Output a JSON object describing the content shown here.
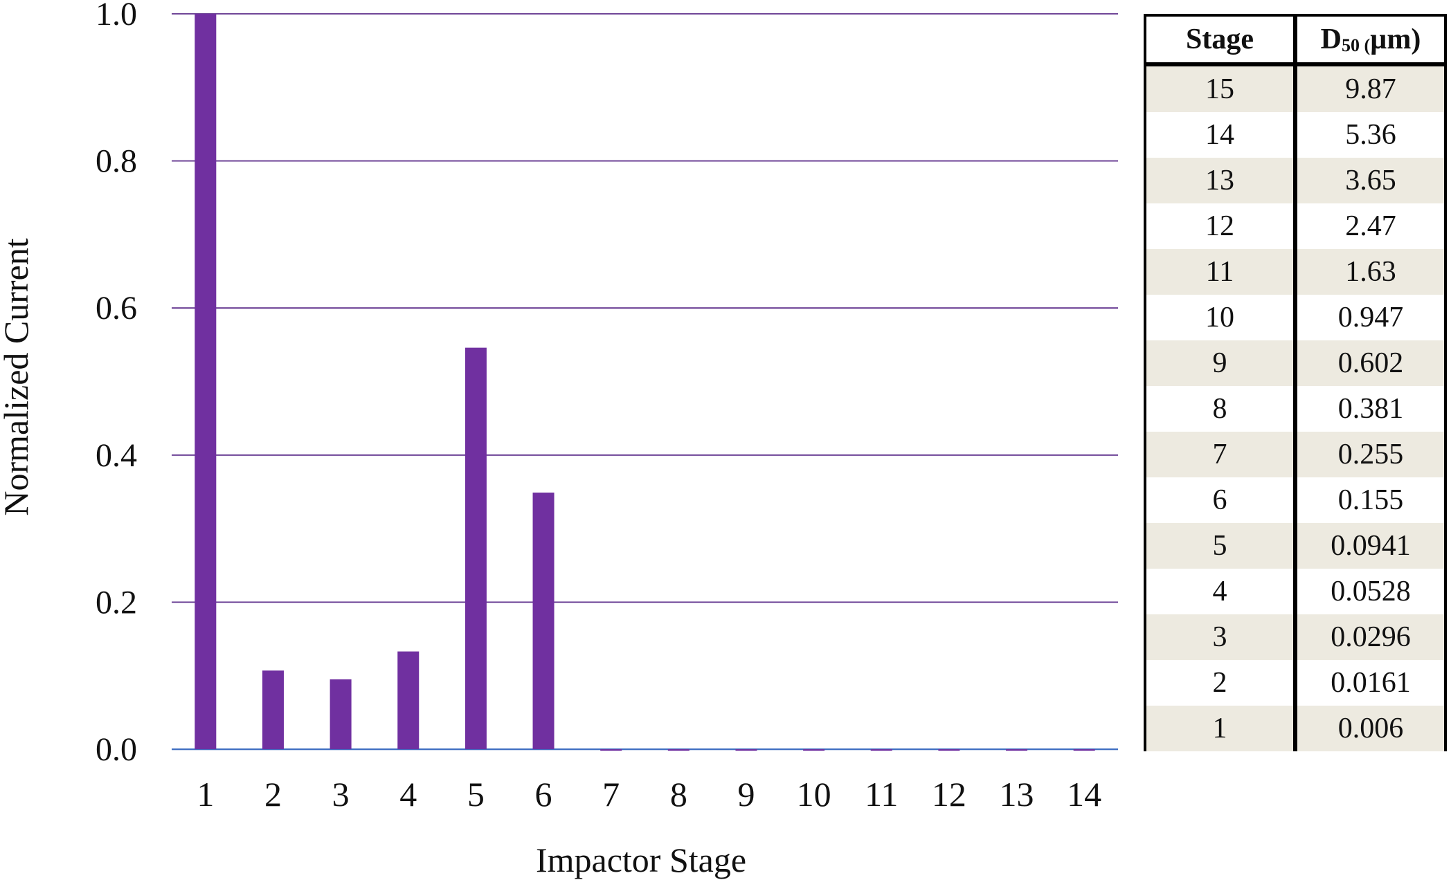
{
  "chart_data": {
    "type": "bar",
    "categories": [
      "1",
      "2",
      "3",
      "4",
      "5",
      "6",
      "7",
      "8",
      "9",
      "10",
      "11",
      "12",
      "13",
      "14"
    ],
    "values": [
      1.0,
      0.107,
      0.095,
      0.133,
      0.546,
      0.349,
      -0.002,
      -0.002,
      -0.002,
      -0.002,
      -0.002,
      -0.002,
      -0.002,
      -0.002
    ],
    "xlabel": "Impactor Stage",
    "ylabel": "Normalized  Current",
    "ylim": [
      0,
      1.0
    ],
    "yticks": [
      "0.0",
      "0.2",
      "0.4",
      "0.6",
      "0.8",
      "1.0"
    ],
    "grid": true,
    "colors": {
      "bar": "#7030a0",
      "grid": "#5b2c8a",
      "baseline": "#4472c4"
    }
  },
  "table": {
    "header_stage": "Stage",
    "header_d_main": "D",
    "header_d_sub": "50 (",
    "header_d_unit": "µm)",
    "rows": [
      {
        "stage": "15",
        "d50": "9.87"
      },
      {
        "stage": "14",
        "d50": "5.36"
      },
      {
        "stage": "13",
        "d50": "3.65"
      },
      {
        "stage": "12",
        "d50": "2.47"
      },
      {
        "stage": "11",
        "d50": "1.63"
      },
      {
        "stage": "10",
        "d50": "0.947"
      },
      {
        "stage": "9",
        "d50": "0.602"
      },
      {
        "stage": "8",
        "d50": "0.381"
      },
      {
        "stage": "7",
        "d50": "0.255"
      },
      {
        "stage": "6",
        "d50": "0.155"
      },
      {
        "stage": "5",
        "d50": "0.0941"
      },
      {
        "stage": "4",
        "d50": "0.0528"
      },
      {
        "stage": "3",
        "d50": "0.0296"
      },
      {
        "stage": "2",
        "d50": "0.0161"
      },
      {
        "stage": "1",
        "d50": "0.006"
      }
    ],
    "shade_color": "#edeae0"
  }
}
